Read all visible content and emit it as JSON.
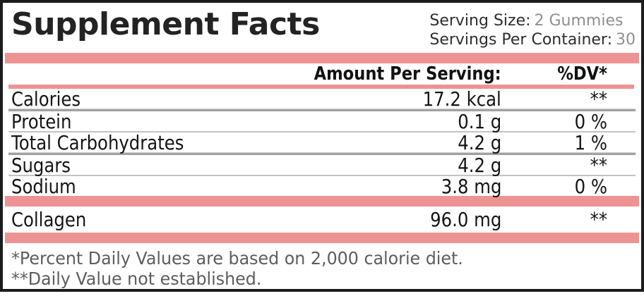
{
  "title": "Supplement Facts",
  "serving": {
    "size_label": "Serving Size:",
    "size_value": "2 Gummies",
    "container_label": "Servings Per Container:",
    "container_value": "30"
  },
  "columns": {
    "amount_header": "Amount Per Serving:",
    "dv_header": "%DV*"
  },
  "rows": [
    {
      "label": "Calories",
      "amount": "17.2 kcal",
      "dv": "**"
    },
    {
      "label": "Protein",
      "amount": "0.1 g",
      "dv": "0 %"
    },
    {
      "label": "Total Carbohydrates",
      "amount": "4.2 g",
      "dv": "1 %"
    },
    {
      "label": "Sugars",
      "amount": "4.2 g",
      "dv": "**"
    },
    {
      "label": "Sodium",
      "amount": "3.8 mg",
      "dv": "0 %"
    }
  ],
  "extra_rows": [
    {
      "label": "Collagen",
      "amount": "96.0 mg",
      "dv": "**"
    }
  ],
  "footnotes": {
    "line1": "*Percent Daily Values are based on 2,000 calorie diet.",
    "line2": "**Daily Value not established."
  },
  "colors": {
    "accent_pink": "#ee9394",
    "border_black": "#1c1c1c",
    "value_gray": "#8f8f8f",
    "footnote_gray": "#5d5d5d"
  }
}
